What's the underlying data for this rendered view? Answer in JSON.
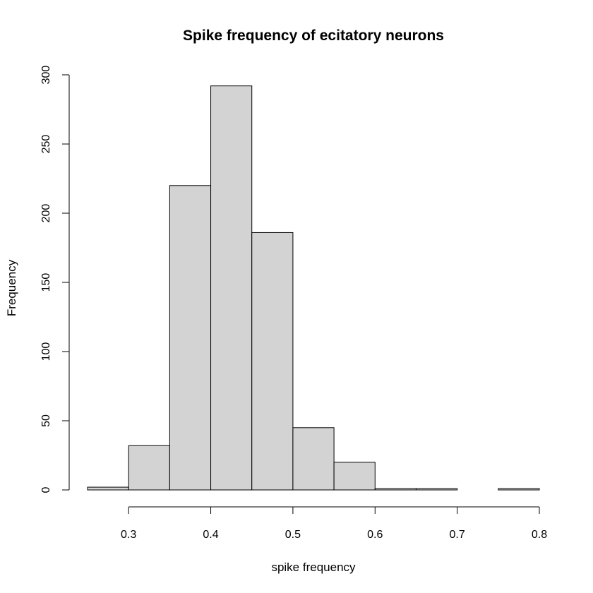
{
  "chart_data": {
    "type": "bar",
    "title": "Spike frequency of ecitatory neurons",
    "xlabel": "spike frequency",
    "ylabel": "Frequency",
    "bar_fill": "#d3d3d3",
    "bar_stroke": "#000000",
    "xlim": [
      0.25,
      0.8
    ],
    "ylim": [
      0,
      300
    ],
    "x_ticks": [
      0.3,
      0.4,
      0.5,
      0.6,
      0.7,
      0.8
    ],
    "x_tick_labels": [
      "0.3",
      "0.4",
      "0.5",
      "0.6",
      "0.7",
      "0.8"
    ],
    "y_ticks": [
      0,
      50,
      100,
      150,
      200,
      250,
      300
    ],
    "y_tick_labels": [
      "0",
      "50",
      "100",
      "150",
      "200",
      "250",
      "300"
    ],
    "bins": [
      {
        "start": 0.25,
        "end": 0.3,
        "count": 2
      },
      {
        "start": 0.3,
        "end": 0.35,
        "count": 32
      },
      {
        "start": 0.35,
        "end": 0.4,
        "count": 220
      },
      {
        "start": 0.4,
        "end": 0.45,
        "count": 292
      },
      {
        "start": 0.45,
        "end": 0.5,
        "count": 186
      },
      {
        "start": 0.5,
        "end": 0.55,
        "count": 45
      },
      {
        "start": 0.55,
        "end": 0.6,
        "count": 20
      },
      {
        "start": 0.6,
        "end": 0.65,
        "count": 1
      },
      {
        "start": 0.65,
        "end": 0.7,
        "count": 1
      },
      {
        "start": 0.7,
        "end": 0.75,
        "count": 0
      },
      {
        "start": 0.75,
        "end": 0.8,
        "count": 1
      }
    ],
    "grid": false,
    "legend": "none"
  }
}
